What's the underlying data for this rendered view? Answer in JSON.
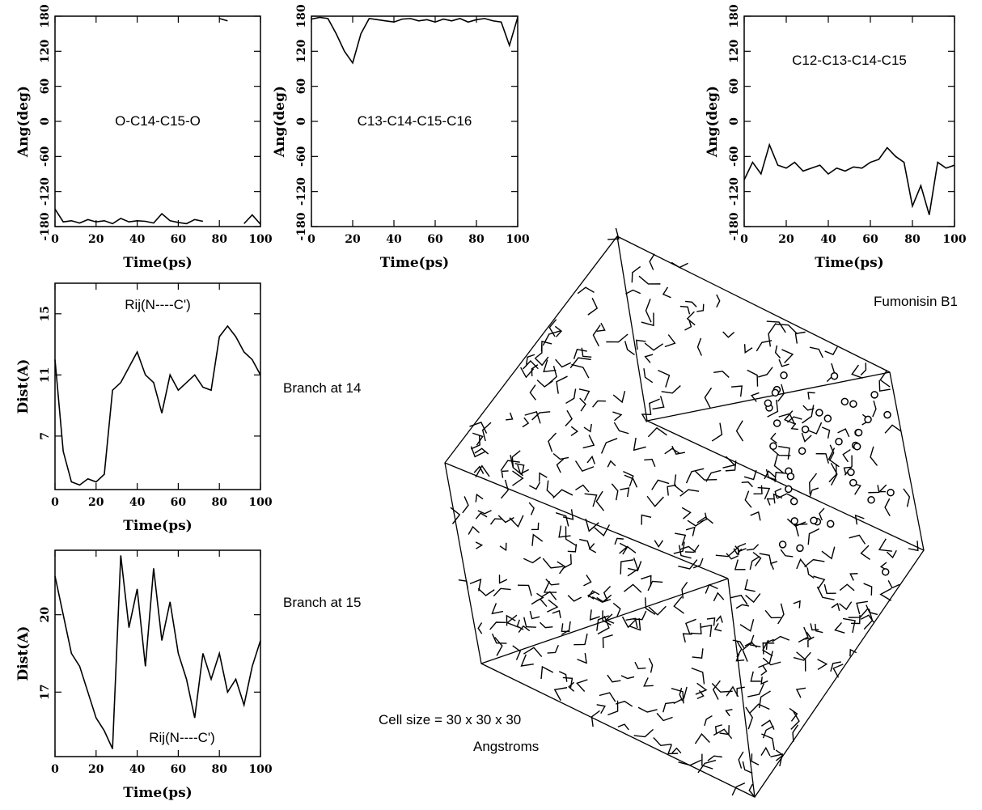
{
  "chart_data": [
    {
      "type": "line",
      "title": "O-C14-C15-O",
      "xlabel": "Time(ps)",
      "ylabel": "Ang(deg)",
      "x": [
        0,
        4,
        8,
        12,
        16,
        20,
        24,
        28,
        32,
        36,
        40,
        44,
        48,
        52,
        56,
        60,
        64,
        68,
        72,
        76,
        80,
        84,
        88,
        92,
        96,
        100
      ],
      "series": [
        {
          "color": "#000000",
          "values": [
            -150,
            -172,
            -170,
            -174,
            -168,
            -172,
            -170,
            -175,
            -166,
            -172,
            -170,
            -171,
            -174,
            -158,
            -170,
            -173,
            -175,
            -168,
            -171,
            null,
            176,
            172,
            null,
            -175,
            -160,
            -176
          ]
        }
      ],
      "xlim": [
        0,
        100
      ],
      "xticks": [
        0,
        20,
        40,
        60,
        80,
        100
      ],
      "ylim": [
        -180,
        180
      ],
      "yticks": [
        -180,
        -120,
        -60,
        0,
        60,
        120,
        180
      ]
    },
    {
      "type": "line",
      "title": "C13-C14-C15-C16",
      "xlabel": "Time(ps)",
      "ylabel": "Ang(deg)",
      "x": [
        0,
        4,
        8,
        12,
        16,
        20,
        24,
        28,
        32,
        36,
        40,
        44,
        48,
        52,
        56,
        60,
        64,
        68,
        72,
        76,
        80,
        84,
        88,
        92,
        96,
        100
      ],
      "series": [
        {
          "color": "#000000",
          "values": [
            175,
            178,
            176,
            150,
            120,
            100,
            150,
            176,
            174,
            172,
            170,
            175,
            176,
            172,
            174,
            170,
            175,
            172,
            176,
            170,
            174,
            176,
            172,
            170,
            130,
            178
          ]
        }
      ],
      "xlim": [
        0,
        100
      ],
      "xticks": [
        0,
        20,
        40,
        60,
        80,
        100
      ],
      "ylim": [
        -180,
        180
      ],
      "yticks": [
        -180,
        -120,
        -60,
        0,
        60,
        120,
        180
      ]
    },
    {
      "type": "line",
      "title": "C12-C13-C14-C15",
      "xlabel": "Time(ps)",
      "ylabel": "Ang(deg)",
      "x": [
        0,
        4,
        8,
        12,
        16,
        20,
        24,
        28,
        32,
        36,
        40,
        44,
        48,
        52,
        56,
        60,
        64,
        68,
        72,
        76,
        80,
        84,
        88,
        92,
        96,
        100
      ],
      "series": [
        {
          "color": "#000000",
          "values": [
            -100,
            -70,
            -90,
            -40,
            -75,
            -80,
            -70,
            -85,
            -80,
            -75,
            -90,
            -80,
            -85,
            -78,
            -80,
            -70,
            -65,
            -45,
            -60,
            -70,
            -145,
            -110,
            -160,
            -70,
            -80,
            -75
          ]
        }
      ],
      "xlim": [
        0,
        100
      ],
      "xticks": [
        0,
        20,
        40,
        60,
        80,
        100
      ],
      "ylim": [
        -180,
        180
      ],
      "yticks": [
        -180,
        -120,
        -60,
        0,
        60,
        120,
        180
      ]
    },
    {
      "type": "line",
      "title": "Rij(N----C')",
      "annotation": "Branch at 14",
      "xlabel": "Time(ps)",
      "ylabel": "Dist(A)",
      "x": [
        0,
        4,
        8,
        12,
        16,
        20,
        24,
        28,
        32,
        36,
        40,
        44,
        48,
        52,
        56,
        60,
        64,
        68,
        72,
        76,
        80,
        84,
        88,
        92,
        96,
        100
      ],
      "series": [
        {
          "color": "#000000",
          "values": [
            12,
            6,
            4,
            3.8,
            4.2,
            4,
            4.5,
            10,
            10.5,
            11.5,
            12.5,
            11,
            10.5,
            8.5,
            11,
            10,
            10.5,
            11,
            10.2,
            10,
            13.5,
            14.2,
            13.5,
            12.5,
            12,
            11
          ]
        }
      ],
      "xlim": [
        0,
        100
      ],
      "xticks": [
        0,
        20,
        40,
        60,
        80,
        100
      ],
      "ylim": [
        3.5,
        17
      ],
      "yticks": [
        7,
        11,
        15
      ]
    },
    {
      "type": "line",
      "title": "Rij(N----C')",
      "annotation": "Branch at 15",
      "xlabel": "Time(ps)",
      "ylabel": "Dist(A)",
      "x": [
        0,
        4,
        8,
        12,
        16,
        20,
        24,
        28,
        32,
        36,
        40,
        44,
        48,
        52,
        56,
        60,
        64,
        68,
        72,
        76,
        80,
        84,
        88,
        92,
        96,
        100
      ],
      "series": [
        {
          "color": "#000000",
          "values": [
            21.5,
            20,
            18.5,
            18,
            17,
            16,
            15.5,
            14.8,
            22.3,
            19.5,
            21,
            18,
            21.8,
            19,
            20.5,
            18.5,
            17.5,
            16,
            18.5,
            17.5,
            18.5,
            17,
            17.5,
            16.5,
            18,
            19
          ]
        }
      ],
      "xlim": [
        0,
        100
      ],
      "xticks": [
        0,
        20,
        40,
        60,
        80,
        100
      ],
      "ylim": [
        14.5,
        22.5
      ],
      "yticks": [
        17,
        20
      ]
    }
  ],
  "image": {
    "label": "Fumonisin B1",
    "caption": [
      "Cell size = 30 x 30 x 30",
      "Angstroms"
    ]
  }
}
